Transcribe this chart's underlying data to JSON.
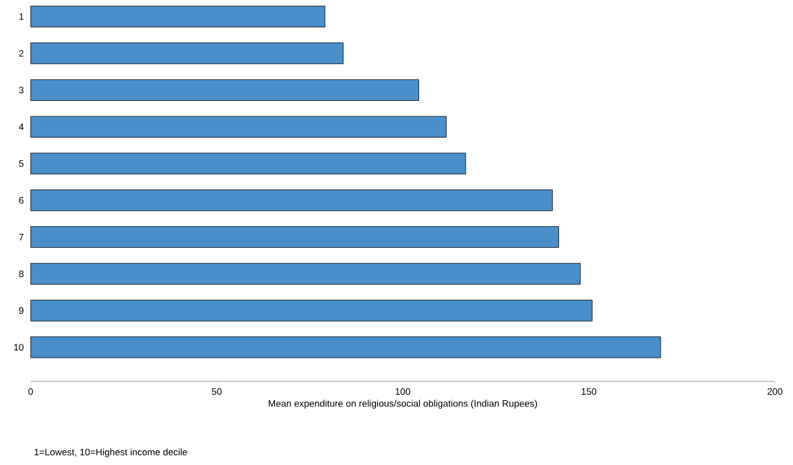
{
  "chart_data": {
    "type": "bar",
    "orientation": "horizontal",
    "categories": [
      "1",
      "2",
      "3",
      "4",
      "5",
      "6",
      "7",
      "8",
      "9",
      "10"
    ],
    "values": [
      79.1,
      84.0,
      104.3,
      111.7,
      116.9,
      140.2,
      141.9,
      147.7,
      150.9,
      169.3
    ],
    "color": "#4a8fc9",
    "xlim": [
      0,
      200
    ],
    "xticks": [
      0,
      50,
      100,
      150,
      200
    ],
    "xlabel": "Mean expenditure on religious/social obligations (Indian Rupees)",
    "annotations": [
      "1=Lowest, 10=Highest income decile"
    ]
  }
}
